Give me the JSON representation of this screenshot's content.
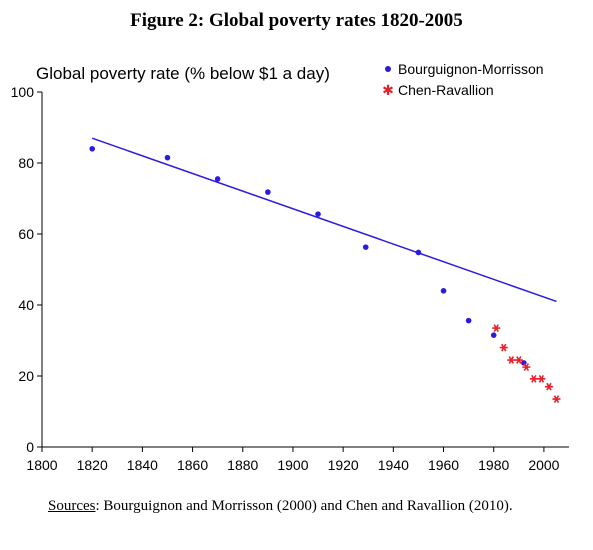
{
  "figure_title": "Figure 2: Global poverty rates 1820-2005",
  "sources": {
    "label": "Sources",
    "text": ": Bourguignon and Morrisson (2000) and Chen and Ravallion (2010)."
  },
  "chart_data": {
    "type": "scatter",
    "title": "Figure 2: Global poverty rates 1820-2005",
    "ylabel": "Global poverty rate (% below $1 a day)",
    "xlabel": "",
    "xlim": [
      1800,
      2010
    ],
    "ylim": [
      0,
      100
    ],
    "x_ticks": [
      1800,
      1820,
      1840,
      1860,
      1880,
      1900,
      1920,
      1940,
      1960,
      1980,
      2000
    ],
    "y_ticks": [
      0,
      20,
      40,
      60,
      80,
      100
    ],
    "legend_position": "top-right",
    "colors": {
      "bm": "#2b1be0",
      "cr": "#e8202a",
      "trend": "#2b1be0"
    },
    "series": [
      {
        "name": "Bourguignon-Morrisson",
        "marker": "dot",
        "points": [
          [
            1820,
            84
          ],
          [
            1850,
            81.5
          ],
          [
            1870,
            75.5
          ],
          [
            1890,
            71.8
          ],
          [
            1910,
            65.6
          ],
          [
            1929,
            56.3
          ],
          [
            1950,
            54.8
          ],
          [
            1960,
            44
          ],
          [
            1970,
            35.6
          ],
          [
            1980,
            31.5
          ],
          [
            1992,
            23.7
          ]
        ]
      },
      {
        "name": "Chen-Ravallion",
        "marker": "star",
        "points": [
          [
            1981,
            33.5
          ],
          [
            1984,
            28
          ],
          [
            1987,
            24.5
          ],
          [
            1990,
            24.5
          ],
          [
            1993,
            22.5
          ],
          [
            1996,
            19.2
          ],
          [
            1999,
            19.2
          ],
          [
            2002,
            17
          ],
          [
            2005,
            13.5
          ]
        ]
      }
    ],
    "trend_line": {
      "x": [
        1820,
        2005
      ],
      "y": [
        87,
        41
      ]
    }
  }
}
